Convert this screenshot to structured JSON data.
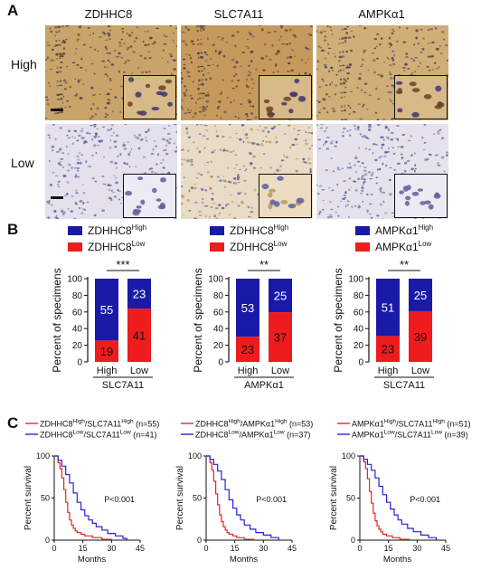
{
  "panels": {
    "a": "A",
    "b": "B",
    "c": "C"
  },
  "ihc": {
    "columns": [
      "ZDHHC8",
      "SLC7A11",
      "AMPKα1"
    ],
    "rows": [
      "High",
      "Low"
    ]
  },
  "bar_charts": [
    {
      "legend": [
        {
          "base": "ZDHHC8",
          "sup": "High",
          "color": "#1a1aa8"
        },
        {
          "base": "ZDHHC8",
          "sup": "Low",
          "color": "#ee1c1c"
        }
      ],
      "ylabel": "Percent of specimens",
      "xlabel": "SLC7A11",
      "categories": [
        "High",
        "Low"
      ],
      "bottom_values": [
        19,
        41
      ],
      "top_values": [
        55,
        23
      ],
      "significance": "***"
    },
    {
      "legend": [
        {
          "base": "ZDHHC8",
          "sup": "High",
          "color": "#1a1aa8"
        },
        {
          "base": "ZDHHC8",
          "sup": "Low",
          "color": "#ee1c1c"
        }
      ],
      "ylabel": "Percent of specimens",
      "xlabel": "AMPKα1",
      "categories": [
        "High",
        "Low"
      ],
      "bottom_values": [
        23,
        37
      ],
      "top_values": [
        53,
        25
      ],
      "significance": "**"
    },
    {
      "legend": [
        {
          "base": "AMPKα1",
          "sup": "High",
          "color": "#1a1aa8"
        },
        {
          "base": "AMPKα1",
          "sup": "Low",
          "color": "#ee1c1c"
        }
      ],
      "ylabel": "Percent of specimens",
      "xlabel": "SLC7A11",
      "categories": [
        "High",
        "Low"
      ],
      "bottom_values": [
        23,
        39
      ],
      "top_values": [
        51,
        25
      ],
      "significance": "**"
    }
  ],
  "chart_data": [
    {
      "type": "bar",
      "stacked": true,
      "categories": [
        "High",
        "Low"
      ],
      "series": [
        {
          "name": "ZDHHC8 Low",
          "values": [
            19,
            41
          ]
        },
        {
          "name": "ZDHHC8 High",
          "values": [
            55,
            23
          ]
        }
      ],
      "xlabel": "SLC7A11",
      "ylabel": "Percent of specimens",
      "ylim": [
        0,
        100
      ],
      "yticks": [
        0,
        20,
        40,
        60,
        80,
        100
      ]
    },
    {
      "type": "bar",
      "stacked": true,
      "categories": [
        "High",
        "Low"
      ],
      "series": [
        {
          "name": "ZDHHC8 Low",
          "values": [
            23,
            37
          ]
        },
        {
          "name": "ZDHHC8 High",
          "values": [
            53,
            25
          ]
        }
      ],
      "xlabel": "AMPKα1",
      "ylabel": "Percent of specimens",
      "ylim": [
        0,
        100
      ],
      "yticks": [
        0,
        20,
        40,
        60,
        80,
        100
      ]
    },
    {
      "type": "bar",
      "stacked": true,
      "categories": [
        "High",
        "Low"
      ],
      "series": [
        {
          "name": "AMPKα1 Low",
          "values": [
            23,
            39
          ]
        },
        {
          "name": "AMPKα1 High",
          "values": [
            51,
            25
          ]
        }
      ],
      "xlabel": "SLC7A11",
      "ylabel": "Percent of specimens",
      "ylim": [
        0,
        100
      ],
      "yticks": [
        0,
        20,
        40,
        60,
        80,
        100
      ]
    },
    {
      "type": "line",
      "step": true,
      "xlabel": "Months",
      "ylabel": "Percent survival",
      "xlim": [
        0,
        45
      ],
      "ylim": [
        0,
        100
      ],
      "xticks": [
        0,
        15,
        30,
        45
      ],
      "yticks": [
        0,
        50,
        100
      ],
      "annotation": "P<0.001",
      "series": [
        {
          "legend_base1": "ZDHHC8",
          "legend_sup1": "High",
          "legend_base2": "/SLC7A11",
          "legend_sup2": "High",
          "n": "(n=55)",
          "color": "#ee2222",
          "x": [
            0,
            2,
            3,
            4,
            5,
            6,
            7,
            8,
            9,
            10,
            11,
            12,
            14,
            16,
            20,
            25,
            30
          ],
          "y": [
            100,
            92,
            85,
            74,
            60,
            45,
            33,
            24,
            18,
            14,
            11,
            9,
            7,
            5,
            3,
            1,
            0
          ]
        },
        {
          "legend_base1": "ZDHHC8",
          "legend_sup1": "Low",
          "legend_base2": "/SLC7A11",
          "legend_sup2": "Low",
          "n": "(n=41)",
          "color": "#2222dd",
          "x": [
            0,
            2,
            4,
            6,
            8,
            10,
            12,
            14,
            16,
            18,
            20,
            22,
            25,
            28,
            32,
            36,
            38
          ],
          "y": [
            100,
            95,
            88,
            78,
            68,
            56,
            45,
            36,
            29,
            24,
            20,
            16,
            12,
            8,
            5,
            2,
            0
          ]
        }
      ]
    },
    {
      "type": "line",
      "step": true,
      "xlabel": "Months",
      "ylabel": "Percent survival",
      "xlim": [
        0,
        45
      ],
      "ylim": [
        0,
        100
      ],
      "xticks": [
        0,
        15,
        30,
        45
      ],
      "yticks": [
        0,
        50,
        100
      ],
      "annotation": "P<0.001",
      "series": [
        {
          "legend_base1": "ZDHHC8",
          "legend_sup1": "High",
          "legend_base2": "/AMPKα1",
          "legend_sup2": "High",
          "n": "(n=53)",
          "color": "#ee2222",
          "x": [
            0,
            2,
            3,
            4,
            5,
            6,
            7,
            8,
            9,
            10,
            11,
            12,
            14,
            16,
            20,
            25
          ],
          "y": [
            100,
            92,
            83,
            70,
            55,
            42,
            30,
            22,
            16,
            12,
            9,
            7,
            5,
            3,
            1,
            0
          ]
        },
        {
          "legend_base1": "ZDHHC8",
          "legend_sup1": "Low",
          "legend_base2": "/AMPKα1",
          "legend_sup2": "Low",
          "n": "(n=37)",
          "color": "#2222dd",
          "x": [
            0,
            2,
            4,
            6,
            8,
            10,
            12,
            14,
            16,
            18,
            20,
            23,
            26,
            30,
            34,
            38
          ],
          "y": [
            100,
            96,
            90,
            82,
            72,
            60,
            48,
            38,
            30,
            24,
            18,
            13,
            9,
            6,
            3,
            0
          ]
        }
      ]
    },
    {
      "type": "line",
      "step": true,
      "xlabel": "Months",
      "ylabel": "Percent survival",
      "xlim": [
        0,
        45
      ],
      "ylim": [
        0,
        100
      ],
      "xticks": [
        0,
        15,
        30,
        45
      ],
      "yticks": [
        0,
        50,
        100
      ],
      "annotation": "P<0.001",
      "series": [
        {
          "legend_base1": "AMPKα1",
          "legend_sup1": "High",
          "legend_base2": "/SLC7A11",
          "legend_sup2": "High",
          "n": "(n=51)",
          "color": "#ee2222",
          "x": [
            0,
            2,
            3,
            4,
            5,
            6,
            7,
            8,
            9,
            10,
            11,
            12,
            14,
            17,
            21,
            26
          ],
          "y": [
            100,
            93,
            85,
            73,
            58,
            44,
            32,
            23,
            17,
            13,
            10,
            7,
            5,
            3,
            1,
            0
          ]
        },
        {
          "legend_base1": "AMPKα1",
          "legend_sup1": "Low",
          "legend_base2": "/SLC7A11",
          "legend_sup2": "Low",
          "n": "(n=39)",
          "color": "#2222dd",
          "x": [
            0,
            2,
            4,
            6,
            8,
            10,
            12,
            14,
            16,
            18,
            20,
            22,
            25,
            28,
            32,
            36,
            40
          ],
          "y": [
            100,
            96,
            90,
            83,
            74,
            64,
            54,
            45,
            37,
            30,
            24,
            19,
            14,
            10,
            6,
            3,
            0
          ]
        }
      ]
    }
  ],
  "colors": {
    "bar_high": "#1a1aa8",
    "bar_low": "#ee1c1c",
    "ihc_high_bg": "#c9a46a",
    "ihc_low_bg": "#e6e2ec",
    "surv_high": "#ee2222",
    "surv_low": "#2222dd"
  }
}
